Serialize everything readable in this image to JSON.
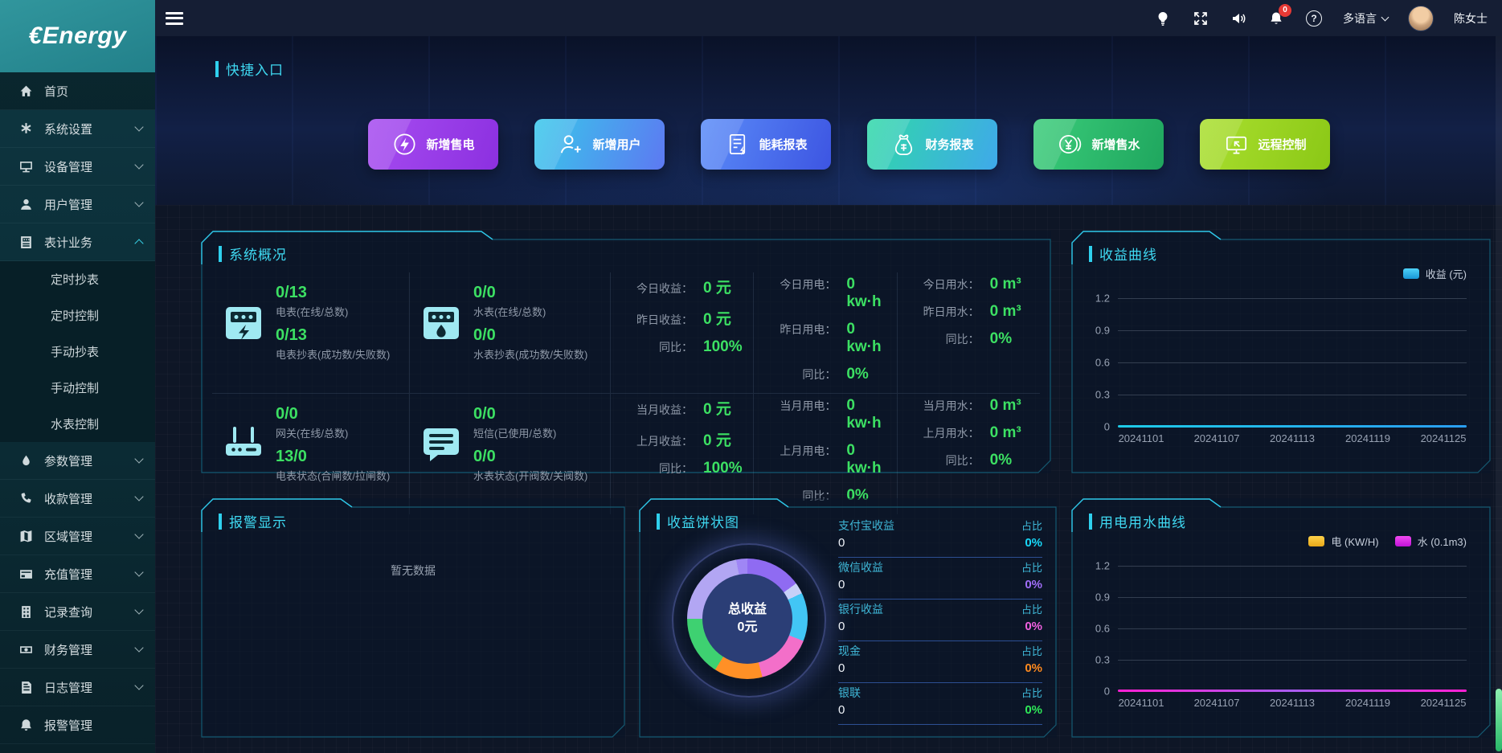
{
  "app": {
    "logo_text": "€Energy"
  },
  "topbar": {
    "language_label": "多语言",
    "username": "陈女士",
    "bell_badge": "0"
  },
  "sidebar": {
    "items": [
      {
        "label": "首页"
      },
      {
        "label": "系统设置"
      },
      {
        "label": "设备管理"
      },
      {
        "label": "用户管理"
      },
      {
        "label": "表计业务"
      },
      {
        "label": "参数管理"
      },
      {
        "label": "收款管理"
      },
      {
        "label": "区域管理"
      },
      {
        "label": "充值管理"
      },
      {
        "label": "记录查询"
      },
      {
        "label": "财务管理"
      },
      {
        "label": "日志管理"
      },
      {
        "label": "报警管理"
      }
    ],
    "submenu": [
      {
        "label": "定时抄表"
      },
      {
        "label": "定时控制"
      },
      {
        "label": "手动抄表"
      },
      {
        "label": "手动控制"
      },
      {
        "label": "水表控制"
      }
    ]
  },
  "quick": {
    "title": "快捷入口",
    "buttons": [
      {
        "label": "新增售电",
        "icon": "lightning-circle-icon"
      },
      {
        "label": "新增用户",
        "icon": "user-plus-icon"
      },
      {
        "label": "能耗报表",
        "icon": "energy-report-icon"
      },
      {
        "label": "财务报表",
        "icon": "money-bag-icon"
      },
      {
        "label": "新增售水",
        "icon": "yuan-coin-icon"
      },
      {
        "label": "远程控制",
        "icon": "remote-screen-icon"
      }
    ]
  },
  "overview": {
    "title": "系统概况",
    "stats": [
      {
        "value1": "0/13",
        "label1": "电表(在线/总数)",
        "value2": "0/13",
        "label2": "电表抄表(成功数/失败数)"
      },
      {
        "value1": "0/0",
        "label1": "水表(在线/总数)",
        "value2": "0/0",
        "label2": "水表抄表(成功数/失败数)"
      },
      {
        "value1": "0/0",
        "label1": "网关(在线/总数)",
        "value2": "13/0",
        "label2": "电表状态(合闸数/拉闸数)"
      },
      {
        "value1": "0/0",
        "label1": "短信(已使用/总数)",
        "value2": "0/0",
        "label2": "水表状态(开阀数/关阀数)"
      }
    ],
    "metrics": [
      {
        "top": [
          [
            "今日收益：",
            "0 元"
          ],
          [
            "昨日收益：",
            "0 元"
          ],
          [
            "同比：",
            "100%"
          ]
        ],
        "bottom": [
          [
            "当月收益：",
            "0 元"
          ],
          [
            "上月收益：",
            "0 元"
          ],
          [
            "同比：",
            "100%"
          ]
        ]
      },
      {
        "top": [
          [
            "今日用电：",
            "0 kw·h"
          ],
          [
            "昨日用电：",
            "0 kw·h"
          ],
          [
            "同比：",
            "0%"
          ]
        ],
        "bottom": [
          [
            "当月用电：",
            "0 kw·h"
          ],
          [
            "上月用电：",
            "0 kw·h"
          ],
          [
            "同比：",
            "0%"
          ]
        ]
      },
      {
        "top": [
          [
            "今日用水：",
            "0 m³"
          ],
          [
            "昨日用水：",
            "0 m³"
          ],
          [
            "同比：",
            "0%"
          ]
        ],
        "bottom": [
          [
            "当月用水：",
            "0 m³"
          ],
          [
            "上月用水：",
            "0 m³"
          ],
          [
            "同比：",
            "0%"
          ]
        ]
      }
    ]
  },
  "revenue_chart": {
    "title": "收益曲线",
    "legend": "收益 (元)",
    "legend_color": "#25b6ea",
    "yticks": [
      "1.2",
      "0.9",
      "0.6",
      "0.3",
      "0"
    ],
    "xticks": [
      "20241101",
      "20241107",
      "20241113",
      "20241119",
      "20241125"
    ]
  },
  "alarm_panel": {
    "title": "报警显示",
    "empty_text": "暂无数据"
  },
  "pie_panel": {
    "title": "收益饼状图",
    "center_title": "总收益",
    "center_value": "0元",
    "items": [
      {
        "label": "支付宝收益",
        "value": "0",
        "ratio_label": "占比",
        "percent": "0%",
        "percent_color": "#18d8f8"
      },
      {
        "label": "微信收益",
        "value": "0",
        "ratio_label": "占比",
        "percent": "0%",
        "percent_color": "#a06ef8"
      },
      {
        "label": "银行收益",
        "value": "0",
        "ratio_label": "占比",
        "percent": "0%",
        "percent_color": "#f060e0"
      },
      {
        "label": "现金",
        "value": "0",
        "ratio_label": "占比",
        "percent": "0%",
        "percent_color": "#ff8a1e"
      },
      {
        "label": "银联",
        "value": "0",
        "ratio_label": "占比",
        "percent": "0%",
        "percent_color": "#2ee858"
      }
    ]
  },
  "usage_chart": {
    "title": "用电用水曲线",
    "legends": [
      {
        "label": "电 (KW/H)",
        "color": "#f0b429"
      },
      {
        "label": "水 (0.1m3)",
        "color": "#e020ed"
      }
    ],
    "yticks": [
      "1.2",
      "0.9",
      "0.6",
      "0.3",
      "0"
    ],
    "xticks": [
      "20241101",
      "20241107",
      "20241113",
      "20241119",
      "20241125"
    ]
  },
  "colors": {
    "accent_cyan": "#2fd0ee",
    "value_green": "#3ce063",
    "panel_border_dim": "#155a72",
    "panel_border_bright": "#2fc9ea",
    "revenue_line": "#1ecbe8",
    "water_line": "#e020ed",
    "electric_line": "#f0b429"
  },
  "chart_data": [
    {
      "type": "line",
      "title": "收益曲线",
      "x": [
        "20241101",
        "20241107",
        "20241113",
        "20241119",
        "20241125"
      ],
      "series": [
        {
          "name": "收益 (元)",
          "color": "#1ecbe8",
          "values": [
            0,
            0,
            0,
            0,
            0
          ]
        }
      ],
      "ylim": [
        0,
        1.2
      ],
      "yticks": [
        0,
        0.3,
        0.6,
        0.9,
        1.2
      ],
      "grid": true,
      "legend_position": "top-right"
    },
    {
      "type": "pie",
      "title": "收益饼状图",
      "slices": [
        {
          "label": "支付宝收益",
          "value": 0,
          "percent": "0%"
        },
        {
          "label": "微信收益",
          "value": 0,
          "percent": "0%"
        },
        {
          "label": "银行收益",
          "value": 0,
          "percent": "0%"
        },
        {
          "label": "现金",
          "value": 0,
          "percent": "0%"
        },
        {
          "label": "银联",
          "value": 0,
          "percent": "0%"
        }
      ],
      "center_label": "总收益",
      "center_value": "0元"
    },
    {
      "type": "line",
      "title": "用电用水曲线",
      "x": [
        "20241101",
        "20241107",
        "20241113",
        "20241119",
        "20241125"
      ],
      "series": [
        {
          "name": "电 (KW/H)",
          "color": "#f0b429",
          "values": [
            0,
            0,
            0,
            0,
            0
          ]
        },
        {
          "name": "水 (0.1m3)",
          "color": "#e020ed",
          "values": [
            0,
            0,
            0,
            0,
            0
          ]
        }
      ],
      "ylim": [
        0,
        1.2
      ],
      "yticks": [
        0,
        0.3,
        0.6,
        0.9,
        1.2
      ],
      "grid": true,
      "legend_position": "top-right"
    }
  ]
}
